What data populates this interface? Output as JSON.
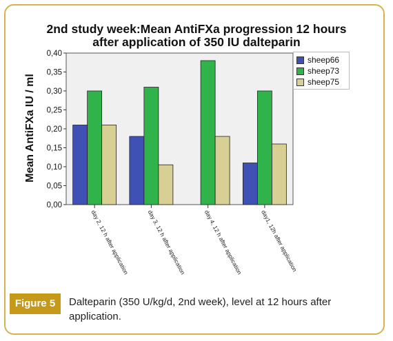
{
  "chart_data": {
    "type": "bar",
    "title": [
      "2nd study week:Mean AntiFXa progression 12 hours",
      "after application of 350 IU dalteparin"
    ],
    "ylabel": "Mean AntiFXa IU / ml",
    "xlabel": "",
    "ylim": [
      0,
      0.4
    ],
    "yticks": [
      "0,00",
      "0,05",
      "0,10",
      "0,15",
      "0,20",
      "0,25",
      "0,30",
      "0,35",
      "0,40"
    ],
    "categories": [
      "day 2, 12 h after application",
      "day 3, 12 h after application",
      "day 4, 12 h after application",
      "day1, 12h after application"
    ],
    "series": [
      {
        "name": "sheep66",
        "color": "#3f51b5",
        "values": [
          0.21,
          0.18,
          0.0,
          0.11
        ]
      },
      {
        "name": "sheep73",
        "color": "#2fb34a",
        "values": [
          0.3,
          0.31,
          0.38,
          0.3
        ]
      },
      {
        "name": "sheep75",
        "color": "#d8cf94",
        "values": [
          0.21,
          0.105,
          0.18,
          0.16
        ]
      }
    ],
    "plot_background": "#f0f0f0",
    "grid": false,
    "legend_position": "top-right"
  },
  "figure": {
    "label": "Figure 5",
    "caption": "Dalteparin (350 U/kg/d, 2nd week), level at 12 hours after application."
  },
  "colors": {
    "frame_border": "#d4b44a",
    "figure_label_bg": "#c59a1b"
  }
}
